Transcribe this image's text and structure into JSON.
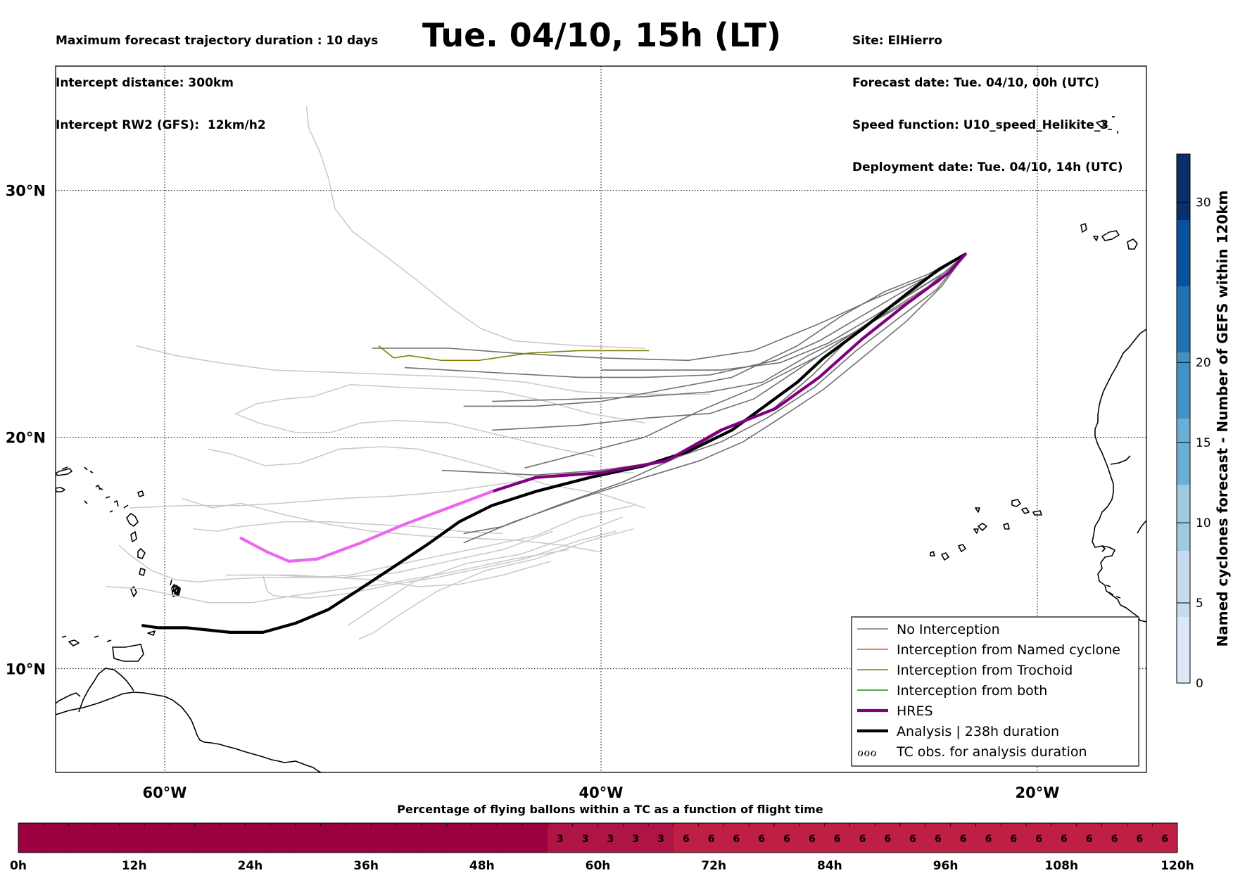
{
  "header": {
    "left_lines": [
      "Maximum forecast trajectory duration : 10 days",
      "Intercept distance: 300km",
      "Intercept RW2 (GFS):  12km/h2"
    ],
    "right_lines": [
      "Site: ElHierro",
      "Forecast date: Tue. 04/10, 00h (UTC)",
      "Speed function: U10_speed_Helikite_3",
      "Deployment date: Tue. 04/10, 14h (UTC)"
    ],
    "title": "Tue. 04/10, 15h (LT)"
  },
  "map": {
    "lon_ticks": [
      "60°W",
      "40°W",
      "20°W"
    ],
    "lat_ticks": [
      "30°N",
      "20°N",
      "10°N"
    ],
    "lon_values": [
      -60,
      -40,
      -20
    ],
    "lat_values": [
      30,
      20,
      10
    ],
    "extent": {
      "lon_min": -65,
      "lon_max": -15,
      "lat_min": 5.4,
      "lat_max": 34.7
    }
  },
  "legend": {
    "items": [
      {
        "label": "No Interception",
        "color": "#777777",
        "style": "thin"
      },
      {
        "label": "Interception from Named cyclone",
        "color": "#e8501e",
        "style": "thin"
      },
      {
        "label": "Interception from Trochoid",
        "color": "#808000",
        "style": "thin"
      },
      {
        "label": "Interception from both",
        "color": "#1e8c1e",
        "style": "thin"
      },
      {
        "label": "HRES",
        "color": "#800080",
        "style": "thick"
      },
      {
        "label": "Analysis | 238h duration",
        "color": "#000000",
        "style": "thick"
      },
      {
        "label": "TC obs. for analysis duration",
        "color": "#000000",
        "style": "symbol",
        "symbol": "ℴℴℴ"
      }
    ]
  },
  "colorbar": {
    "label": "Named cyclones forecast - Number of GEFS within 120km",
    "ticks": [
      "0",
      "5",
      "10",
      "15",
      "20",
      "30"
    ],
    "tick_values": [
      0,
      5,
      10,
      15,
      20,
      30
    ],
    "max": 33,
    "colors": [
      "#dce8f6",
      "#c6dbef",
      "#9ecae1",
      "#6baed6",
      "#4292c6",
      "#2171b5",
      "#08519c",
      "#08306b"
    ]
  },
  "timebar": {
    "title": "Percentage of flying ballons within a TC as a function of flight time",
    "ticks": [
      "0h",
      "12h",
      "24h",
      "36h",
      "48h",
      "60h",
      "72h",
      "84h",
      "96h",
      "108h",
      "120h"
    ],
    "cell_values": [
      "",
      "",
      "",
      "",
      "",
      "",
      "",
      "",
      "",
      "",
      "",
      "",
      "",
      "",
      "",
      "",
      "",
      "",
      "",
      "",
      "",
      "3",
      "3",
      "3",
      "3",
      "3",
      "6",
      "6",
      "6",
      "6",
      "6",
      "6",
      "6",
      "6",
      "6",
      "6",
      "6",
      "6",
      "6",
      "6",
      "6",
      "6",
      "6",
      "6",
      "6",
      "6"
    ],
    "color_zero": "#9b003f",
    "color_3": "#ae1444",
    "color_6": "#bf1f45"
  },
  "tracks": {
    "hres": [
      [
        -23.3,
        27.5
      ],
      [
        -24,
        26.8
      ],
      [
        -26,
        25.5
      ],
      [
        -28,
        24.1
      ],
      [
        -30,
        22.5
      ],
      [
        -32,
        21.2
      ],
      [
        -34.5,
        20.3
      ],
      [
        -37,
        19
      ],
      [
        -40,
        18.5
      ],
      [
        -43,
        18.3
      ],
      [
        -45,
        17.7
      ],
      [
        -47,
        17
      ],
      [
        -49,
        16.3
      ],
      [
        -51,
        15.5
      ],
      [
        -53,
        14.8
      ],
      [
        -54.3,
        14.7
      ],
      [
        -55.3,
        15.1
      ],
      [
        -56.5,
        15.7
      ]
    ],
    "analysis": [
      [
        -23.3,
        27.5
      ],
      [
        -24.5,
        26.9
      ],
      [
        -26,
        25.9
      ],
      [
        -28,
        24.5
      ],
      [
        -29.8,
        23.3
      ],
      [
        -31,
        22.3
      ],
      [
        -32.5,
        21.3
      ],
      [
        -34,
        20.3
      ],
      [
        -36,
        19.4
      ],
      [
        -38,
        18.8
      ],
      [
        -40.5,
        18.3
      ],
      [
        -43,
        17.7
      ],
      [
        -45,
        17.1
      ],
      [
        -46.5,
        16.4
      ],
      [
        -48,
        15.4
      ],
      [
        -49.6,
        14.4
      ],
      [
        -51.2,
        13.4
      ],
      [
        -52.5,
        12.6
      ],
      [
        -54,
        12.0
      ],
      [
        -55.5,
        11.6
      ],
      [
        -57,
        11.6
      ],
      [
        -59,
        11.8
      ],
      [
        -60.3,
        11.8
      ],
      [
        -61,
        11.9
      ]
    ],
    "trochoid": [
      [
        -37.8,
        23.6
      ],
      [
        -41,
        23.6
      ],
      [
        -43.3,
        23.5
      ],
      [
        -45.6,
        23.2
      ],
      [
        -47.3,
        23.2
      ],
      [
        -48.8,
        23.4
      ],
      [
        -49.5,
        23.3
      ],
      [
        -50.2,
        23.8
      ]
    ],
    "gefs_dark": [
      [
        [
          -23.3,
          27.5
        ],
        [
          -25,
          26.7
        ],
        [
          -27,
          26
        ],
        [
          -29,
          25
        ],
        [
          -31,
          23.8
        ],
        [
          -34,
          22.5
        ],
        [
          -37,
          22
        ],
        [
          -40,
          21.5
        ],
        [
          -43,
          21.3
        ],
        [
          -46.3,
          21.3
        ]
      ],
      [
        [
          -23.3,
          27.5
        ],
        [
          -25.2,
          26.5
        ],
        [
          -27.5,
          25.3
        ],
        [
          -30,
          24
        ],
        [
          -32,
          23.2
        ],
        [
          -35,
          22.6
        ],
        [
          -38,
          22.5
        ],
        [
          -41,
          22.5
        ],
        [
          -45,
          22.7
        ],
        [
          -49,
          22.9
        ]
      ],
      [
        [
          -23.3,
          27.5
        ],
        [
          -25,
          26.6
        ],
        [
          -27.5,
          25.7
        ],
        [
          -30,
          24.7
        ],
        [
          -33,
          23.6
        ],
        [
          -36,
          23.2
        ],
        [
          -40,
          23.3
        ],
        [
          -44,
          23.5
        ],
        [
          -47,
          23.7
        ],
        [
          -50.5,
          23.7
        ]
      ],
      [
        [
          -23.3,
          27.5
        ],
        [
          -25,
          26.2
        ],
        [
          -27,
          25.1
        ],
        [
          -29,
          24.0
        ],
        [
          -31,
          22.8
        ],
        [
          -33,
          21.6
        ],
        [
          -35,
          21.0
        ],
        [
          -38,
          20.8
        ],
        [
          -41,
          20.5
        ],
        [
          -45,
          20.3
        ]
      ],
      [
        [
          -23.3,
          27.5
        ],
        [
          -24.6,
          26.1
        ],
        [
          -26.4,
          24.9
        ],
        [
          -28.3,
          23.6
        ],
        [
          -30.2,
          22.1
        ],
        [
          -32.4,
          20.8
        ],
        [
          -34.5,
          19.8
        ],
        [
          -37,
          19
        ],
        [
          -40,
          18.6
        ],
        [
          -43,
          18.4
        ],
        [
          -47.3,
          18.6
        ]
      ],
      [
        [
          -23.3,
          27.5
        ],
        [
          -24.4,
          26.2
        ],
        [
          -26,
          24.8
        ],
        [
          -27.9,
          23.4
        ],
        [
          -29.8,
          22.0
        ],
        [
          -31.8,
          20.8
        ],
        [
          -33.5,
          19.8
        ],
        [
          -35.5,
          19
        ],
        [
          -38,
          18.3
        ],
        [
          -41,
          17.4
        ],
        [
          -44,
          16.4
        ],
        [
          -46.3,
          15.5
        ]
      ],
      [
        [
          -23.3,
          27.5
        ],
        [
          -24.9,
          26.6
        ],
        [
          -26.8,
          25.4
        ],
        [
          -28.5,
          24.2
        ],
        [
          -30.3,
          22.6
        ],
        [
          -32.1,
          21.2
        ],
        [
          -34.2,
          20.4
        ],
        [
          -36.4,
          19.2
        ],
        [
          -39,
          18.1
        ],
        [
          -42,
          17.1
        ],
        [
          -44.5,
          16.2
        ],
        [
          -46.3,
          15.9
        ]
      ],
      [
        [
          -23.3,
          27.5
        ],
        [
          -24.5,
          26.4
        ],
        [
          -26.5,
          25.3
        ],
        [
          -28.7,
          24.2
        ],
        [
          -30.5,
          23.4
        ],
        [
          -32.6,
          22.3
        ],
        [
          -35,
          21.9
        ],
        [
          -38,
          21.7
        ],
        [
          -41,
          21.6
        ],
        [
          -45,
          21.5
        ]
      ],
      [
        [
          -23.3,
          27.5
        ],
        [
          -24.2,
          26.8
        ],
        [
          -25.5,
          26.1
        ],
        [
          -27.5,
          25.0
        ],
        [
          -29.6,
          23.9
        ],
        [
          -31.8,
          23.1
        ],
        [
          -34.5,
          22.8
        ],
        [
          -37,
          22.8
        ],
        [
          -40,
          22.8
        ]
      ],
      [
        [
          -23.3,
          27.5
        ],
        [
          -24.0,
          26.9
        ],
        [
          -26.0,
          25.8
        ],
        [
          -27.8,
          24.7
        ],
        [
          -30,
          23.4
        ],
        [
          -32.6,
          22.2
        ],
        [
          -35.5,
          21.1
        ],
        [
          -38,
          20.0
        ],
        [
          -41,
          19.3
        ],
        [
          -43.5,
          18.7
        ]
      ]
    ],
    "gefs_light": [
      [
        [
          -53.5,
          33.2
        ],
        [
          -53.4,
          32.4
        ],
        [
          -52.9,
          31.5
        ],
        [
          -52.5,
          30.5
        ],
        [
          -52.2,
          29.3
        ],
        [
          -51.4,
          28.4
        ],
        [
          -50,
          27.5
        ],
        [
          -48.5,
          26.5
        ],
        [
          -46.8,
          25.3
        ],
        [
          -45.5,
          24.5
        ],
        [
          -44,
          24.0
        ],
        [
          -41,
          23.8
        ],
        [
          -38,
          23.7
        ]
      ],
      [
        [
          -61.3,
          23.8
        ],
        [
          -59.5,
          23.4
        ],
        [
          -57.5,
          23.1
        ],
        [
          -55,
          22.8
        ],
        [
          -52,
          22.7
        ],
        [
          -49,
          22.6
        ],
        [
          -46,
          22.5
        ],
        [
          -43.5,
          22.3
        ],
        [
          -41,
          21.9
        ],
        [
          -38,
          21.8
        ],
        [
          -35,
          21.8
        ]
      ],
      [
        [
          -56.7,
          21.0
        ],
        [
          -55.8,
          21.4
        ],
        [
          -54.5,
          21.6
        ],
        [
          -53.2,
          21.7
        ],
        [
          -51.5,
          22.2
        ],
        [
          -49.5,
          22.1
        ],
        [
          -47,
          22.0
        ],
        [
          -44.5,
          21.9
        ],
        [
          -42.5,
          21.5
        ],
        [
          -40.5,
          21.0
        ],
        [
          -38,
          20.6
        ]
      ],
      [
        [
          -56.8,
          21.0
        ],
        [
          -55.7,
          20.6
        ],
        [
          -54,
          20.2
        ],
        [
          -52.4,
          20.2
        ],
        [
          -51,
          20.6
        ],
        [
          -49.4,
          20.7
        ],
        [
          -47,
          20.6
        ],
        [
          -44.7,
          20.1
        ],
        [
          -42.4,
          19.6
        ],
        [
          -40.3,
          19.2
        ]
      ],
      [
        [
          -58,
          19.5
        ],
        [
          -57,
          19.3
        ],
        [
          -55.4,
          18.8
        ],
        [
          -53.8,
          18.9
        ],
        [
          -52,
          19.5
        ],
        [
          -50,
          19.6
        ],
        [
          -48.4,
          19.5
        ],
        [
          -47,
          19.2
        ],
        [
          -45,
          18.7
        ],
        [
          -42.5,
          18.0
        ],
        [
          -40,
          17.6
        ],
        [
          -38,
          17.0
        ]
      ],
      [
        [
          -61.6,
          17.0
        ],
        [
          -59,
          17.1
        ],
        [
          -56.5,
          17.1
        ],
        [
          -54.6,
          17.2
        ],
        [
          -52,
          17.4
        ],
        [
          -49.5,
          17.5
        ],
        [
          -47,
          17.7
        ],
        [
          -44.8,
          18.0
        ],
        [
          -42.5,
          18.3
        ],
        [
          -40.5,
          18.5
        ],
        [
          -38.5,
          18.5
        ]
      ],
      [
        [
          -59.2,
          17.4
        ],
        [
          -57.8,
          17.0
        ],
        [
          -56.5,
          17.2
        ],
        [
          -54.5,
          16.7
        ],
        [
          -52.5,
          16.3
        ],
        [
          -50.5,
          16.0
        ],
        [
          -48.2,
          15.8
        ],
        [
          -46,
          15.7
        ],
        [
          -43.8,
          15.6
        ],
        [
          -41.8,
          15.4
        ],
        [
          -40,
          15.1
        ]
      ],
      [
        [
          -58.7,
          16.1
        ],
        [
          -57.6,
          16.0
        ],
        [
          -56.5,
          16.2
        ],
        [
          -54.5,
          16.4
        ],
        [
          -52.5,
          16.4
        ],
        [
          -50.5,
          16.3
        ],
        [
          -48.5,
          16.2
        ],
        [
          -46.5,
          16.0
        ],
        [
          -44.5,
          15.9
        ]
      ],
      [
        [
          -62.1,
          15.4
        ],
        [
          -61.5,
          14.9
        ],
        [
          -60.6,
          14.3
        ],
        [
          -59.5,
          13.9
        ],
        [
          -58.5,
          13.8
        ],
        [
          -57.5,
          13.9
        ],
        [
          -55.5,
          14.0
        ],
        [
          -53.5,
          14.0
        ],
        [
          -51.8,
          14.0
        ],
        [
          -49.4,
          14.2
        ],
        [
          -47,
          14.7
        ],
        [
          -44.5,
          15.2
        ],
        [
          -42.2,
          16.0
        ]
      ],
      [
        [
          -62.7,
          13.6
        ],
        [
          -61,
          13.5
        ],
        [
          -59.5,
          13.2
        ],
        [
          -58,
          12.9
        ],
        [
          -56,
          12.9
        ],
        [
          -54.1,
          13.2
        ],
        [
          -51.8,
          13.5
        ],
        [
          -50,
          13.7
        ],
        [
          -47,
          14.2
        ],
        [
          -44,
          14.8
        ],
        [
          -41.5,
          15.2
        ]
      ],
      [
        [
          -51.1,
          11.3
        ],
        [
          -50.4,
          11.6
        ],
        [
          -49.2,
          12.4
        ],
        [
          -47.5,
          13.4
        ],
        [
          -45.3,
          14.3
        ],
        [
          -43,
          14.8
        ],
        [
          -40.5,
          15.6
        ],
        [
          -38.5,
          16.1
        ]
      ],
      [
        [
          -51.6,
          11.9
        ],
        [
          -50.2,
          12.8
        ],
        [
          -48.6,
          13.8
        ],
        [
          -46.2,
          14.6
        ],
        [
          -43.7,
          15.0
        ],
        [
          -41.3,
          15.8
        ],
        [
          -39,
          16.6
        ]
      ],
      [
        [
          -56.5,
          14.1
        ],
        [
          -55,
          14.1
        ],
        [
          -53,
          14.0
        ],
        [
          -51.5,
          14.1
        ],
        [
          -49.6,
          14.5
        ],
        [
          -47.6,
          14.9
        ],
        [
          -45.5,
          15.3
        ],
        [
          -43,
          15.8
        ],
        [
          -41,
          16.6
        ],
        [
          -38.5,
          17.1
        ]
      ],
      [
        [
          -57.2,
          14.1
        ],
        [
          -56.0,
          14.1
        ],
        [
          -54.0,
          14.1
        ],
        [
          -52.3,
          14.0
        ],
        [
          -50.4,
          13.9
        ],
        [
          -48.4,
          13.6
        ],
        [
          -46.5,
          13.7
        ],
        [
          -44.5,
          14.1
        ],
        [
          -42.3,
          14.7
        ]
      ],
      [
        [
          -55.5,
          14.1
        ],
        [
          -55.3,
          13.4
        ],
        [
          -55,
          13.2
        ],
        [
          -53.4,
          13.1
        ],
        [
          -51.6,
          13.3
        ],
        [
          -49.5,
          13.7
        ],
        [
          -47.5,
          14.0
        ],
        [
          -45.5,
          14.4
        ],
        [
          -43.5,
          14.8
        ],
        [
          -41,
          15.6
        ],
        [
          -39.3,
          16.0
        ]
      ]
    ]
  }
}
